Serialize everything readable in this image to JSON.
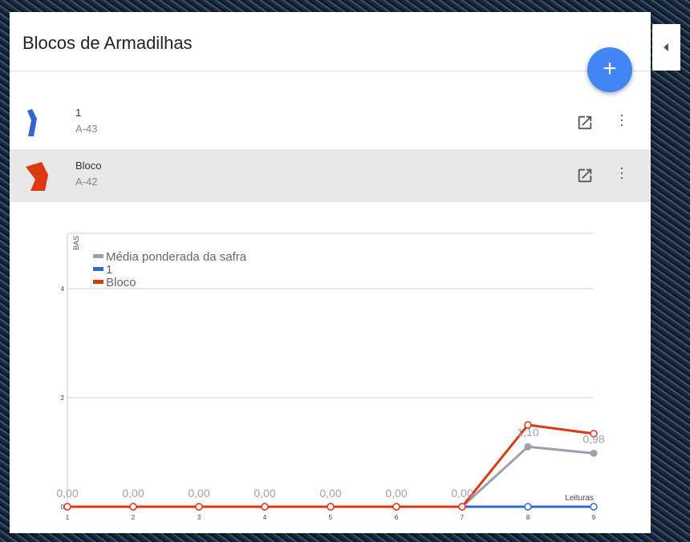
{
  "panel": {
    "title": "Blocos de Armadilhas",
    "add_label": "+"
  },
  "blocks": [
    {
      "name": "1",
      "code": "A-43",
      "color": "#3366cc"
    },
    {
      "name": "Bloco",
      "code": "A-42",
      "color": "#dc3912"
    }
  ],
  "chart_data": {
    "type": "line",
    "ylabel": "BAS",
    "xlabel": "Leituras",
    "x": [
      1,
      2,
      3,
      4,
      5,
      6,
      7,
      8,
      9
    ],
    "yticks": [
      0,
      2,
      4
    ],
    "ylim": [
      0,
      5
    ],
    "grid": true,
    "legend": "top-left",
    "series": [
      {
        "name": "Média ponderada da safra",
        "color": "#9aa0ac",
        "values": [
          0,
          0,
          0,
          0,
          0,
          0,
          0,
          1.1,
          0.98
        ],
        "labels": [
          "0,00",
          "0,00",
          "0,00",
          "0,00",
          "0,00",
          "0,00",
          "0,00",
          "1,10",
          "0,98"
        ]
      },
      {
        "name": "1",
        "color": "#3366cc",
        "values": [
          0,
          0,
          0,
          0,
          0,
          0,
          0,
          0,
          0
        ]
      },
      {
        "name": "Bloco",
        "color": "#dc3912",
        "values": [
          0,
          0,
          0,
          0,
          0,
          0,
          0,
          1.5,
          1.34
        ]
      }
    ]
  }
}
